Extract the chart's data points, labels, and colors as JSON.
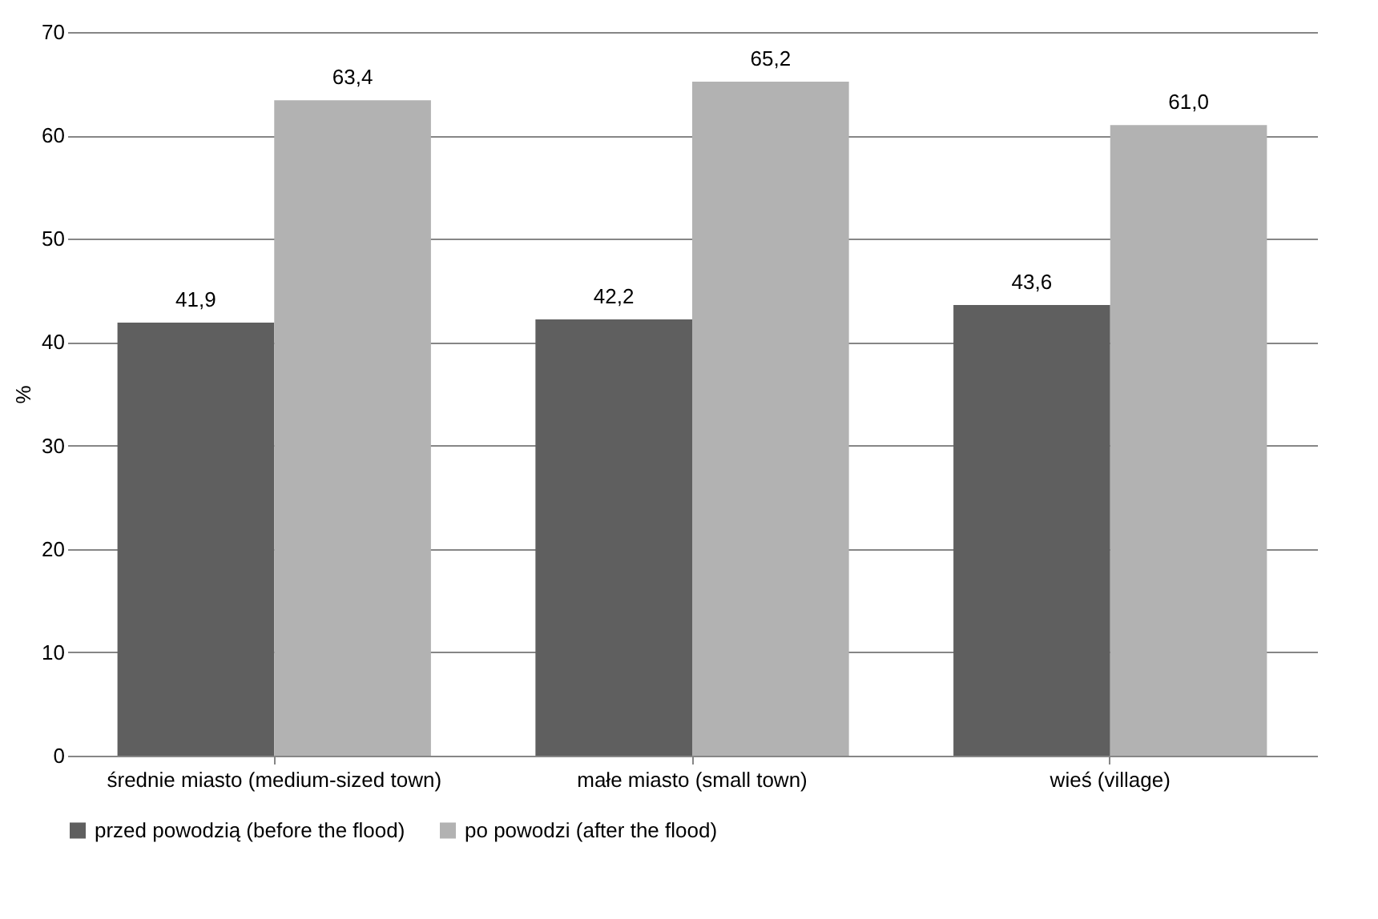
{
  "chart_data": {
    "type": "bar",
    "ylabel": "%",
    "categories": [
      "średnie miasto (medium-sized town)",
      "małe miasto (small town)",
      "wieś (village)"
    ],
    "series": [
      {
        "name": "przed powodzią (before the flood)",
        "color": "#5f5f5f",
        "values": [
          41.9,
          42.2,
          43.6
        ],
        "value_labels": [
          "41,9",
          "42,2",
          "43,6"
        ]
      },
      {
        "name": "po powodzi (after the flood)",
        "color": "#b2b2b2",
        "values": [
          63.4,
          65.2,
          61.0
        ],
        "value_labels": [
          "63,4",
          "65,2",
          "61,0"
        ]
      }
    ],
    "ylim": [
      0,
      70
    ],
    "yticks": [
      0,
      10,
      20,
      30,
      40,
      50,
      60,
      70
    ],
    "grid": "y",
    "legend": "bottom"
  }
}
